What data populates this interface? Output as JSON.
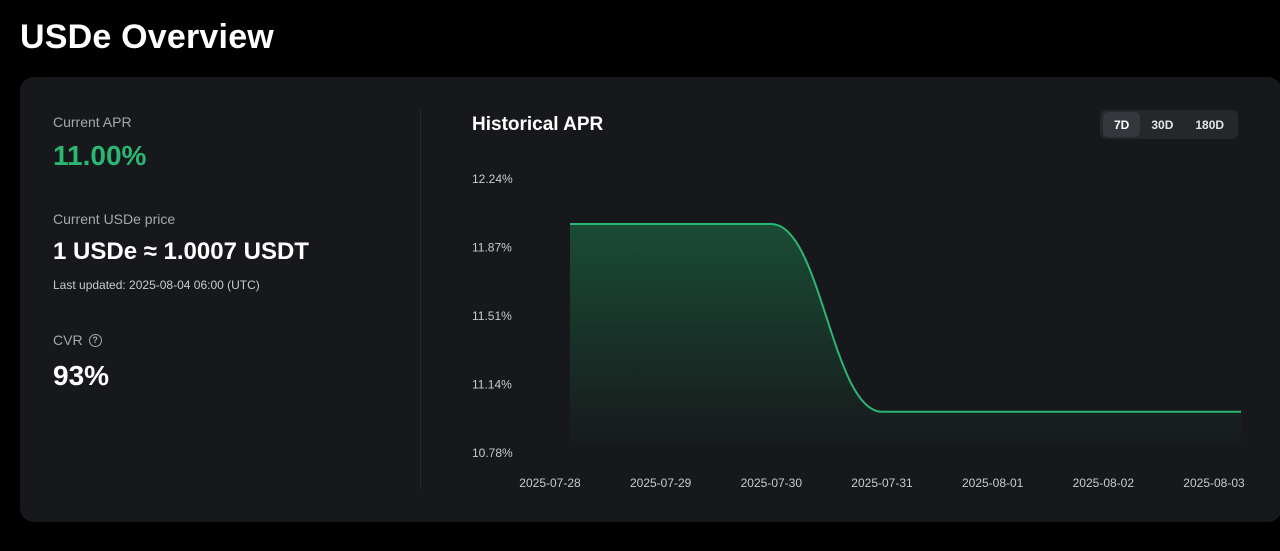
{
  "page": {
    "title": "USDe Overview"
  },
  "stats": {
    "apr_label": "Current APR",
    "apr_value": "11.00%",
    "price_label": "Current USDe price",
    "price_value": "1 USDe ≈ 1.0007 USDT",
    "last_updated": "Last updated: 2025-08-04 06:00 (UTC)",
    "cvr_label": "CVR",
    "cvr_help_icon": "question-circle-icon",
    "cvr_value": "93%"
  },
  "colors": {
    "accent": "#2bb673",
    "card": "#17181b",
    "background": "#000000"
  },
  "chart": {
    "title": "Historical APR",
    "ranges": [
      "7D",
      "30D",
      "180D"
    ],
    "selected_range": "7D"
  },
  "chart_data": {
    "type": "area",
    "title": "Historical APR",
    "xlabel": "",
    "ylabel": "",
    "x": [
      "2025-07-28",
      "2025-07-29",
      "2025-07-30",
      "2025-07-31",
      "2025-08-01",
      "2025-08-02",
      "2025-08-03"
    ],
    "y_ticks": [
      "12.24%",
      "11.87%",
      "11.51%",
      "11.14%",
      "10.78%"
    ],
    "ylim": [
      10.78,
      12.24
    ],
    "series": [
      {
        "points": [
          {
            "x": "2025-07-28",
            "y": 12.0
          },
          {
            "x": "2025-07-29",
            "y": 12.0
          },
          {
            "x": "2025-07-30",
            "y": 12.0
          },
          {
            "x": "2025-07-31",
            "y": 11.0
          },
          {
            "x": "2025-08-01",
            "y": 11.0
          },
          {
            "x": "2025-08-02",
            "y": 11.0
          },
          {
            "x": "2025-08-03",
            "y": 11.0
          }
        ]
      }
    ],
    "grid": false,
    "legend": "none"
  }
}
